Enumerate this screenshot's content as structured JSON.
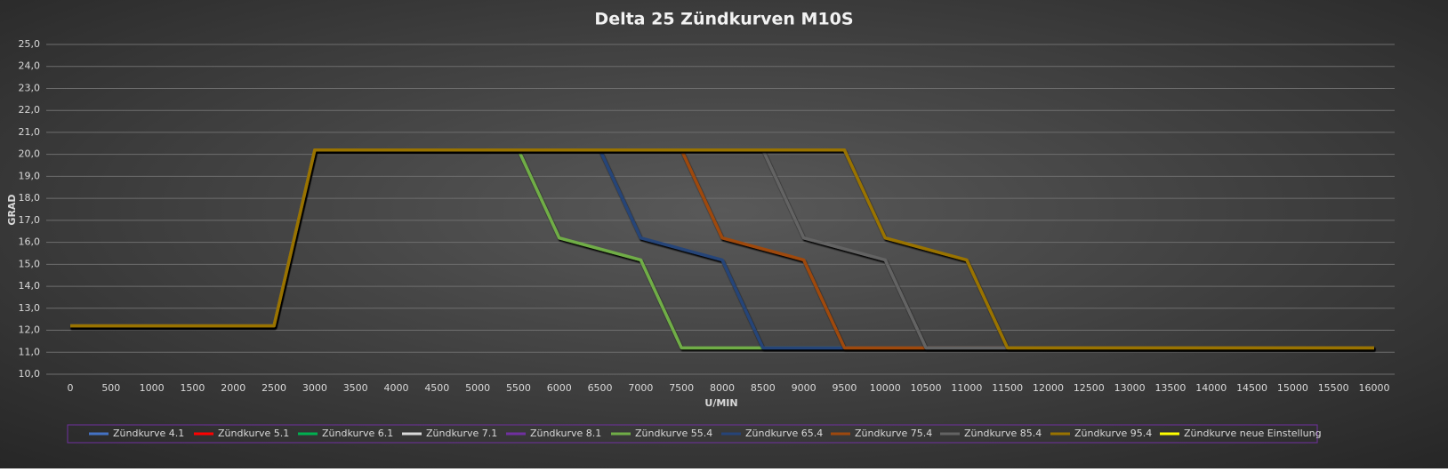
{
  "chart_data": {
    "type": "line",
    "title": "Delta 25 Zündkurven M10S",
    "x_label": "U/MIN",
    "y_label": "GRAD",
    "x": [
      0,
      500,
      1000,
      1500,
      2000,
      2500,
      3000,
      3500,
      4000,
      4500,
      5000,
      5500,
      6000,
      6500,
      7000,
      7500,
      8000,
      8500,
      9000,
      9500,
      10000,
      10500,
      11000,
      11500,
      12000,
      12500,
      13000,
      13500,
      14000,
      14500,
      15000,
      15500,
      16000
    ],
    "xlim": [
      0,
      16000
    ],
    "xticks": [
      0,
      500,
      1000,
      1500,
      2000,
      2500,
      3000,
      3500,
      4000,
      4500,
      5000,
      5500,
      6000,
      6500,
      7000,
      7500,
      8000,
      8500,
      9000,
      9500,
      10000,
      10500,
      11000,
      11500,
      12000,
      12500,
      13000,
      13500,
      14000,
      14500,
      15000,
      15500,
      16000
    ],
    "ylim": [
      10,
      25
    ],
    "yticks": [
      {
        "value": 10,
        "label": "10,0"
      },
      {
        "value": 11,
        "label": "11,0"
      },
      {
        "value": 12,
        "label": "12,0"
      },
      {
        "value": 13,
        "label": "13,0"
      },
      {
        "value": 14,
        "label": "14,0"
      },
      {
        "value": 15,
        "label": "15,0"
      },
      {
        "value": 16,
        "label": "16,0"
      },
      {
        "value": 17,
        "label": "17,0"
      },
      {
        "value": 18,
        "label": "18,0"
      },
      {
        "value": 19,
        "label": "19,0"
      },
      {
        "value": 20,
        "label": "20,0"
      },
      {
        "value": 21,
        "label": "21,0"
      },
      {
        "value": 22,
        "label": "22,0"
      },
      {
        "value": 23,
        "label": "23,0"
      },
      {
        "value": 24,
        "label": "24,0"
      },
      {
        "value": 25,
        "label": "25,0"
      }
    ],
    "grid": true,
    "legend": "bottom",
    "series": [
      {
        "name": "Zündkurve 4.1",
        "color": "#4472c4",
        "values": [
          null,
          null,
          null,
          null,
          null,
          null,
          null,
          null,
          null,
          null,
          null,
          null,
          null,
          null,
          null,
          null,
          null,
          null,
          null,
          null,
          null,
          null,
          null,
          null,
          null,
          null,
          null,
          null,
          null,
          null,
          null,
          null,
          null
        ]
      },
      {
        "name": "Zündkurve 5.1",
        "color": "#ff0000",
        "values": [
          null,
          null,
          null,
          null,
          null,
          null,
          null,
          null,
          null,
          null,
          null,
          null,
          null,
          null,
          null,
          null,
          null,
          null,
          null,
          null,
          null,
          null,
          null,
          null,
          null,
          null,
          null,
          null,
          null,
          null,
          null,
          null,
          null
        ]
      },
      {
        "name": "Zündkurve 6.1",
        "color": "#00b050",
        "values": [
          null,
          null,
          null,
          null,
          null,
          null,
          null,
          null,
          null,
          null,
          null,
          null,
          null,
          null,
          null,
          null,
          null,
          null,
          null,
          null,
          null,
          null,
          null,
          null,
          null,
          null,
          null,
          null,
          null,
          null,
          null,
          null,
          null
        ]
      },
      {
        "name": "Zündkurve 7.1",
        "color": "#d9d9d9",
        "values": [
          null,
          null,
          null,
          null,
          null,
          null,
          null,
          null,
          null,
          null,
          null,
          null,
          null,
          null,
          null,
          null,
          null,
          null,
          null,
          null,
          null,
          null,
          null,
          null,
          null,
          null,
          null,
          null,
          null,
          null,
          null,
          null,
          null
        ]
      },
      {
        "name": "Zündkurve 8.1",
        "color": "#7030a0",
        "values": [
          null,
          null,
          null,
          null,
          null,
          null,
          null,
          null,
          null,
          null,
          null,
          null,
          null,
          null,
          null,
          null,
          null,
          null,
          null,
          null,
          null,
          null,
          null,
          null,
          null,
          null,
          null,
          null,
          null,
          null,
          null,
          null,
          null
        ]
      },
      {
        "name": "Zündkurve 55.4",
        "color": "#70ad47",
        "values": [
          12.2,
          12.2,
          12.2,
          12.2,
          12.2,
          12.2,
          20.2,
          20.2,
          20.2,
          20.2,
          20.2,
          20.2,
          16.2,
          15.7,
          15.2,
          11.2,
          11.2,
          11.2,
          11.2,
          11.2,
          11.2,
          11.2,
          11.2,
          11.2,
          11.2,
          11.2,
          11.2,
          11.2,
          11.2,
          11.2,
          11.2,
          11.2,
          11.2
        ]
      },
      {
        "name": "Zündkurve 65.4",
        "color": "#264478",
        "values": [
          12.2,
          12.2,
          12.2,
          12.2,
          12.2,
          12.2,
          20.2,
          20.2,
          20.2,
          20.2,
          20.2,
          20.2,
          20.2,
          20.2,
          16.2,
          15.7,
          15.2,
          11.2,
          11.2,
          11.2,
          11.2,
          11.2,
          11.2,
          11.2,
          11.2,
          11.2,
          11.2,
          11.2,
          11.2,
          11.2,
          11.2,
          11.2,
          11.2
        ]
      },
      {
        "name": "Zündkurve 75.4",
        "color": "#9e480e",
        "values": [
          12.2,
          12.2,
          12.2,
          12.2,
          12.2,
          12.2,
          20.2,
          20.2,
          20.2,
          20.2,
          20.2,
          20.2,
          20.2,
          20.2,
          20.2,
          20.2,
          16.2,
          15.7,
          15.2,
          11.2,
          11.2,
          11.2,
          11.2,
          11.2,
          11.2,
          11.2,
          11.2,
          11.2,
          11.2,
          11.2,
          11.2,
          11.2,
          11.2
        ]
      },
      {
        "name": "Zündkurve 85.4",
        "color": "#636363",
        "values": [
          12.2,
          12.2,
          12.2,
          12.2,
          12.2,
          12.2,
          20.2,
          20.2,
          20.2,
          20.2,
          20.2,
          20.2,
          20.2,
          20.2,
          20.2,
          20.2,
          20.2,
          20.2,
          16.2,
          15.7,
          15.2,
          11.2,
          11.2,
          11.2,
          11.2,
          11.2,
          11.2,
          11.2,
          11.2,
          11.2,
          11.2,
          11.2,
          11.2
        ]
      },
      {
        "name": "Zündkurve 95.4",
        "color": "#997300",
        "values": [
          12.2,
          12.2,
          12.2,
          12.2,
          12.2,
          12.2,
          20.2,
          20.2,
          20.2,
          20.2,
          20.2,
          20.2,
          20.2,
          20.2,
          20.2,
          20.2,
          20.2,
          20.2,
          20.2,
          20.2,
          16.2,
          15.7,
          15.2,
          11.2,
          11.2,
          11.2,
          11.2,
          11.2,
          11.2,
          11.2,
          11.2,
          11.2,
          11.2
        ]
      },
      {
        "name": "Zündkurve neue Einstellung",
        "color": "#ffff00",
        "values": [
          null,
          null,
          null,
          null,
          null,
          null,
          null,
          null,
          null,
          null,
          null,
          null,
          null,
          null,
          null,
          null,
          null,
          null,
          null,
          null,
          null,
          null,
          null,
          null,
          null,
          null,
          null,
          null,
          null,
          null,
          null,
          null,
          null
        ]
      }
    ]
  }
}
